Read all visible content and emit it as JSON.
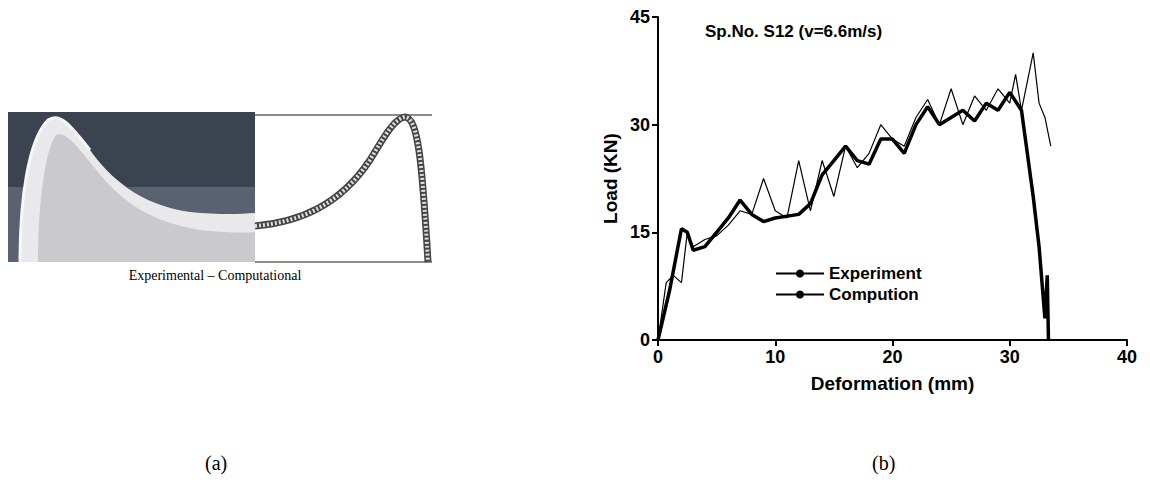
{
  "chart_data": {
    "type": "line",
    "title": "Sp.No. S12 (v=6.6m/s)",
    "x_label": "Deformation (mm)",
    "y_label": "Load (KN)",
    "xlim": [
      0,
      40
    ],
    "xticks": [
      0,
      10,
      20,
      30,
      40
    ],
    "ylim": [
      0,
      45
    ],
    "yticks": [
      0,
      15,
      30,
      45
    ],
    "grid": false,
    "legend": "bottom",
    "series": [
      {
        "name": "Experiment",
        "color": "#000000",
        "line_style": "thick",
        "x": [
          0,
          1,
          2,
          2.5,
          3,
          4,
          5,
          6,
          7,
          8,
          9,
          10,
          12,
          13,
          14,
          15,
          16,
          17,
          18,
          19,
          20,
          21,
          22,
          23,
          24,
          25,
          26,
          27,
          28,
          29,
          30,
          31,
          32,
          32.5,
          33,
          33.2,
          33.3
        ],
        "values": [
          0,
          7,
          15.5,
          15,
          12.5,
          13,
          15,
          17,
          19.5,
          17.5,
          16.5,
          17,
          17.5,
          19,
          23,
          25,
          27,
          25,
          24.5,
          28,
          28,
          26,
          30,
          32.5,
          30,
          31,
          32,
          30.5,
          33,
          32,
          34.5,
          32,
          20,
          13,
          3,
          9,
          0
        ]
      },
      {
        "name": "Compution",
        "color": "#000000",
        "line_style": "thin",
        "x": [
          0,
          0.7,
          1.3,
          2,
          2.5,
          3,
          4,
          5,
          6,
          7,
          8,
          9,
          10,
          11,
          12,
          13,
          14,
          15,
          16,
          17,
          18,
          19,
          20,
          21,
          22,
          23,
          24,
          25,
          26,
          27,
          28,
          29,
          30,
          30.5,
          31,
          32,
          32.5,
          33,
          33.5
        ],
        "values": [
          0,
          8,
          9,
          8,
          15,
          13,
          14,
          14.5,
          16,
          18,
          17.5,
          22.5,
          18,
          17,
          25,
          18,
          25,
          20,
          27,
          24,
          26,
          30,
          28,
          27,
          31,
          33.5,
          30,
          35,
          30,
          34,
          32,
          35,
          33,
          37,
          32,
          40,
          33,
          31,
          27
        ]
      }
    ]
  },
  "figure": {
    "panel_labels": [
      "(a)",
      "(b)"
    ],
    "panel_a": {
      "caption": "Experimental – Computational"
    }
  }
}
